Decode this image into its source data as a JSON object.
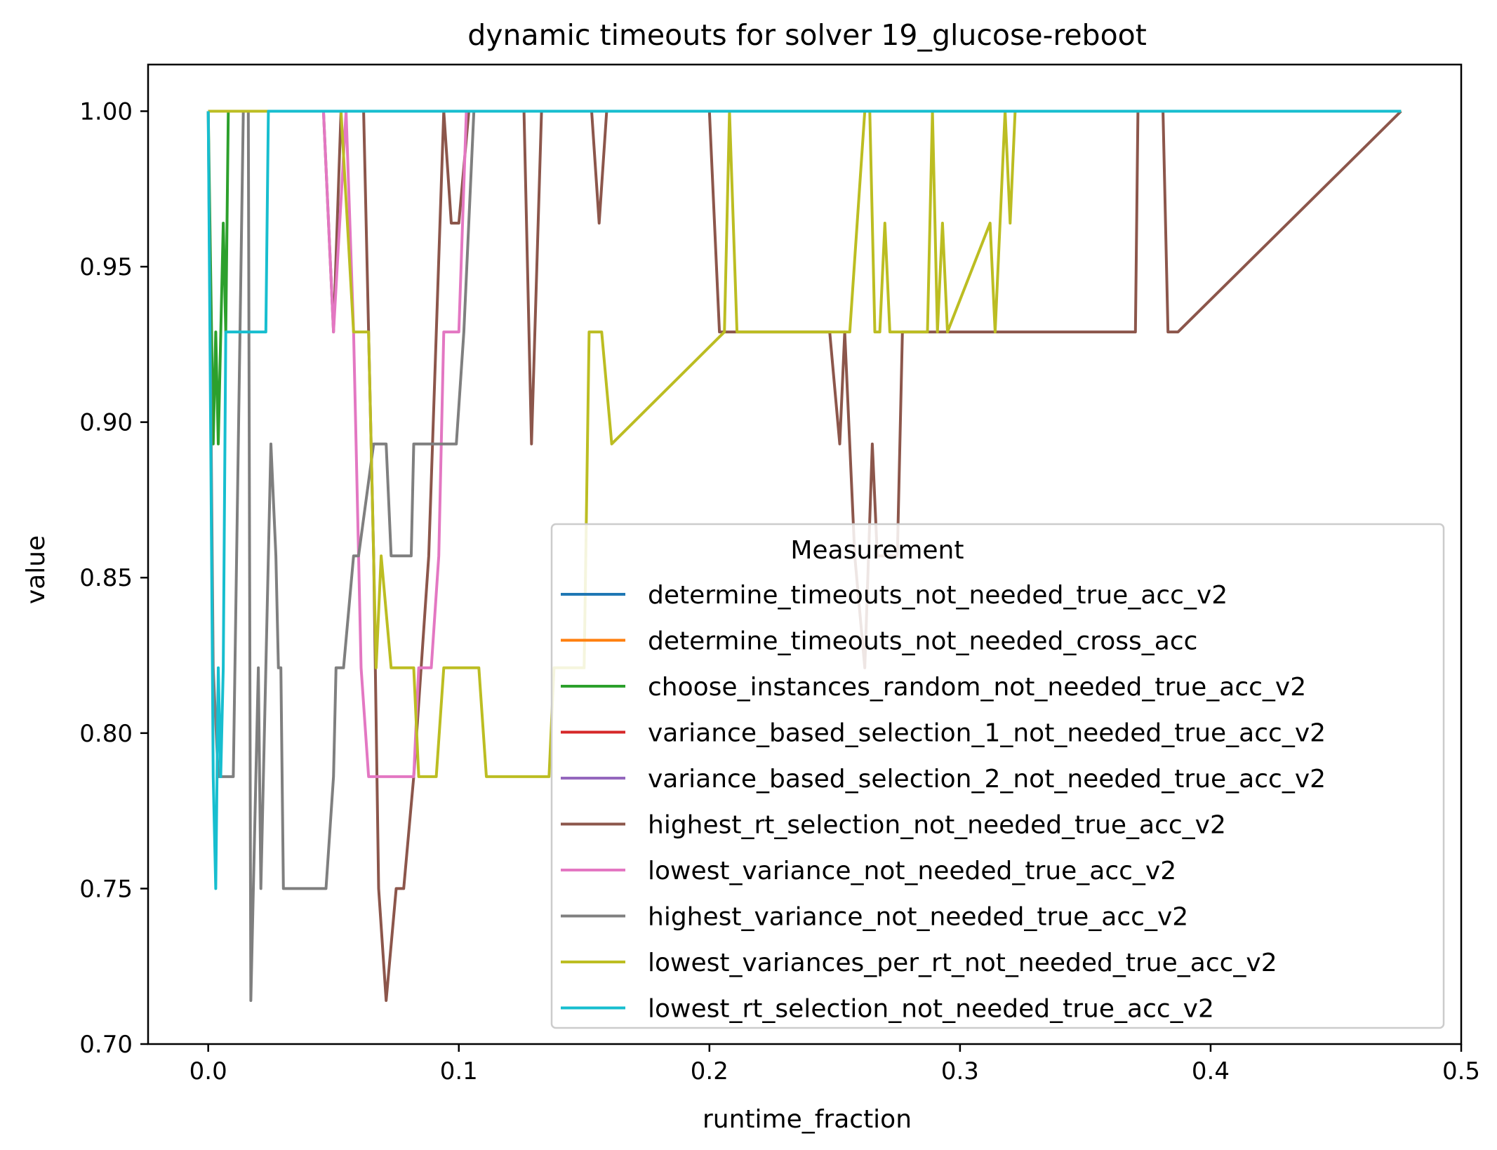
{
  "chart_data": {
    "type": "line",
    "title": "dynamic timeouts for solver 19_glucose-reboot",
    "xlabel": "runtime_fraction",
    "ylabel": "value",
    "xlim": [
      -0.024,
      0.5
    ],
    "ylim": [
      0.7,
      1.015
    ],
    "xticks": [
      0.0,
      0.1,
      0.2,
      0.3,
      0.4,
      0.5
    ],
    "xtick_labels": [
      "0.0",
      "0.1",
      "0.2",
      "0.3",
      "0.4",
      "0.5"
    ],
    "yticks": [
      0.7,
      0.75,
      0.8,
      0.85,
      0.9,
      0.95,
      1.0
    ],
    "ytick_labels": [
      "0.70",
      "0.75",
      "0.80",
      "0.85",
      "0.90",
      "0.95",
      "1.00"
    ],
    "grid": false,
    "legend": {
      "title": "Measurement",
      "placement": "lower right"
    },
    "series": [
      {
        "name": "determine_timeouts_not_needed_true_acc_v2",
        "color": "#1f77b4",
        "x": [
          0.0,
          0.476
        ],
        "y": [
          1.0,
          1.0
        ]
      },
      {
        "name": "determine_timeouts_not_needed_cross_acc",
        "color": "#ff7f0e",
        "x": [
          0.0,
          0.476
        ],
        "y": [
          1.0,
          1.0
        ]
      },
      {
        "name": "choose_instances_random_not_needed_true_acc_v2",
        "color": "#2ca02c",
        "x": [
          0.0,
          0.002,
          0.003,
          0.004,
          0.006,
          0.007,
          0.008,
          0.009,
          0.476
        ],
        "y": [
          1.0,
          0.893,
          0.929,
          0.893,
          0.964,
          0.929,
          1.0,
          1.0,
          1.0
        ]
      },
      {
        "name": "variance_based_selection_1_not_needed_true_acc_v2",
        "color": "#d62728",
        "x": [
          0.0,
          0.476
        ],
        "y": [
          1.0,
          1.0
        ]
      },
      {
        "name": "variance_based_selection_2_not_needed_true_acc_v2",
        "color": "#9467bd",
        "x": [
          0.0,
          0.476
        ],
        "y": [
          1.0,
          1.0
        ]
      },
      {
        "name": "highest_rt_selection_not_needed_true_acc_v2",
        "color": "#8c564b",
        "x": [
          0.0,
          0.046,
          0.05,
          0.053,
          0.058,
          0.06,
          0.062,
          0.066,
          0.068,
          0.071,
          0.075,
          0.078,
          0.082,
          0.088,
          0.094,
          0.097,
          0.1,
          0.104,
          0.106,
          0.126,
          0.129,
          0.133,
          0.153,
          0.156,
          0.159,
          0.2,
          0.204,
          0.207,
          0.248,
          0.252,
          0.254,
          0.258,
          0.262,
          0.265,
          0.267,
          0.269,
          0.275,
          0.277,
          0.29,
          0.294,
          0.37,
          0.371,
          0.381,
          0.383,
          0.387,
          0.476
        ],
        "y": [
          1.0,
          1.0,
          0.929,
          1.0,
          1.0,
          1.0,
          1.0,
          0.857,
          0.75,
          0.714,
          0.75,
          0.75,
          0.786,
          0.857,
          1.0,
          0.964,
          0.964,
          1.0,
          1.0,
          1.0,
          0.893,
          1.0,
          1.0,
          0.964,
          1.0,
          1.0,
          0.929,
          0.929,
          0.929,
          0.893,
          0.929,
          0.857,
          0.821,
          0.893,
          0.857,
          0.857,
          0.857,
          0.929,
          0.929,
          0.929,
          0.929,
          1.0,
          1.0,
          0.929,
          0.929,
          1.0
        ]
      },
      {
        "name": "lowest_variance_not_needed_true_acc_v2",
        "color": "#e377c2",
        "x": [
          0.0,
          0.046,
          0.05,
          0.055,
          0.058,
          0.061,
          0.064,
          0.066,
          0.082,
          0.084,
          0.089,
          0.092,
          0.094,
          0.1,
          0.103,
          0.476
        ],
        "y": [
          1.0,
          1.0,
          0.929,
          1.0,
          0.929,
          0.821,
          0.786,
          0.786,
          0.786,
          0.821,
          0.821,
          0.857,
          0.929,
          0.929,
          1.0,
          1.0
        ]
      },
      {
        "name": "highest_variance_not_needed_true_acc_v2",
        "color": "#7f7f7f",
        "x": [
          0.0,
          0.002,
          0.004,
          0.006,
          0.01,
          0.014,
          0.016,
          0.017,
          0.018,
          0.02,
          0.021,
          0.023,
          0.025,
          0.027,
          0.028,
          0.029,
          0.03,
          0.047,
          0.05,
          0.051,
          0.054,
          0.058,
          0.06,
          0.066,
          0.071,
          0.073,
          0.081,
          0.082,
          0.098,
          0.099,
          0.102,
          0.106,
          0.476
        ],
        "y": [
          1.0,
          0.821,
          0.786,
          0.786,
          0.786,
          1.0,
          1.0,
          0.714,
          0.75,
          0.821,
          0.75,
          0.821,
          0.893,
          0.857,
          0.821,
          0.821,
          0.75,
          0.75,
          0.786,
          0.821,
          0.821,
          0.857,
          0.857,
          0.893,
          0.893,
          0.857,
          0.857,
          0.893,
          0.893,
          0.893,
          0.929,
          1.0,
          1.0
        ]
      },
      {
        "name": "lowest_variances_per_rt_not_needed_true_acc_v2",
        "color": "#bcbd22",
        "x": [
          0.0,
          0.046,
          0.048,
          0.05,
          0.053,
          0.058,
          0.06,
          0.062,
          0.064,
          0.067,
          0.069,
          0.073,
          0.078,
          0.082,
          0.084,
          0.088,
          0.091,
          0.094,
          0.108,
          0.111,
          0.136,
          0.138,
          0.15,
          0.152,
          0.157,
          0.161,
          0.206,
          0.208,
          0.211,
          0.256,
          0.262,
          0.264,
          0.266,
          0.268,
          0.27,
          0.272,
          0.274,
          0.287,
          0.289,
          0.291,
          0.293,
          0.295,
          0.312,
          0.314,
          0.318,
          0.32,
          0.322,
          0.476
        ],
        "y": [
          1.0,
          1.0,
          1.0,
          1.0,
          1.0,
          0.929,
          0.929,
          0.929,
          0.929,
          0.821,
          0.857,
          0.821,
          0.821,
          0.821,
          0.786,
          0.786,
          0.786,
          0.821,
          0.821,
          0.786,
          0.786,
          0.821,
          0.821,
          0.929,
          0.929,
          0.893,
          0.929,
          1.0,
          0.929,
          0.929,
          1.0,
          1.0,
          0.929,
          0.929,
          0.964,
          0.929,
          0.929,
          0.929,
          1.0,
          0.929,
          0.964,
          0.929,
          0.964,
          0.929,
          1.0,
          0.964,
          1.0,
          1.0
        ]
      },
      {
        "name": "lowest_rt_selection_not_needed_true_acc_v2",
        "color": "#17becf",
        "x": [
          0.0,
          0.001,
          0.002,
          0.003,
          0.004,
          0.005,
          0.006,
          0.007,
          0.008,
          0.023,
          0.024,
          0.476
        ],
        "y": [
          1.0,
          0.893,
          0.786,
          0.75,
          0.821,
          0.786,
          0.821,
          0.929,
          0.929,
          0.929,
          1.0,
          1.0
        ]
      }
    ]
  }
}
